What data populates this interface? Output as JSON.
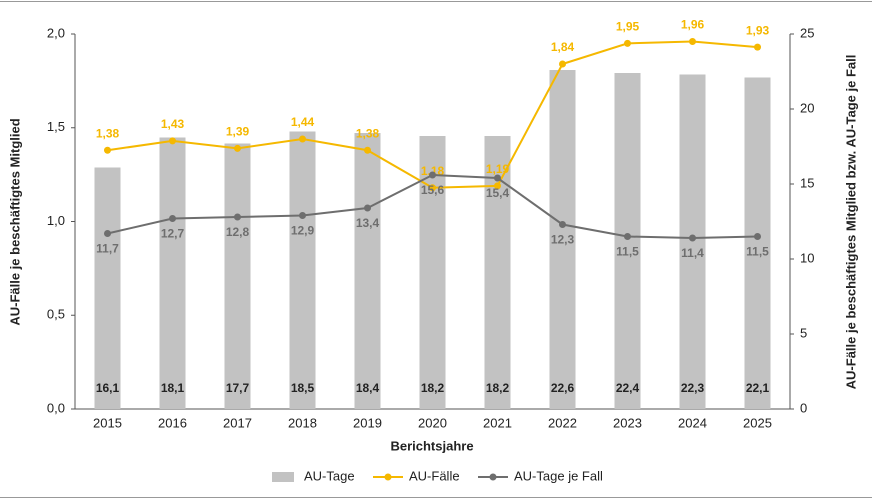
{
  "chart_data": {
    "type": "combo",
    "x_label": "Berichtsjahre",
    "y_label": "AU-Fälle je beschäftigtes Mitglied",
    "y2_label": "AU-Fälle je beschäftigtes Mitglied bzw. AU-Tage je Fall",
    "categories": [
      "2015",
      "2016",
      "2017",
      "2018",
      "2019",
      "2020",
      "2021",
      "2022",
      "2023",
      "2024",
      "2025"
    ],
    "ylim": [
      0,
      2
    ],
    "yticks": [
      {
        "value": 0,
        "label": "0,0"
      },
      {
        "value": 0.5,
        "label": "0,5"
      },
      {
        "value": 1,
        "label": "1,0"
      },
      {
        "value": 1.5,
        "label": "1,5"
      },
      {
        "value": 2,
        "label": "2,0"
      }
    ],
    "y2lim": [
      0,
      25
    ],
    "y2ticks": [
      0,
      5,
      10,
      15,
      20,
      25
    ],
    "series": [
      {
        "name": "AU-Tage",
        "type": "bar",
        "axis": "y2",
        "color": "#c2c2c2",
        "values": [
          16.1,
          18.1,
          17.7,
          18.5,
          18.4,
          18.2,
          18.2,
          22.6,
          22.4,
          22.3,
          22.1
        ],
        "value_labels": [
          "16,1",
          "18,1",
          "17,7",
          "18,5",
          "18,4",
          "18,2",
          "18,2",
          "22,6",
          "22,4",
          "22,3",
          "22,1"
        ]
      },
      {
        "name": "AU-Fälle",
        "type": "line",
        "axis": "y",
        "color": "#f5b800",
        "values": [
          1.38,
          1.43,
          1.39,
          1.44,
          1.38,
          1.18,
          1.19,
          1.84,
          1.95,
          1.96,
          1.93
        ],
        "value_labels": [
          "1,38",
          "1,43",
          "1,39",
          "1,44",
          "1,38",
          "1,18",
          "1,19",
          "1,84",
          "1,95",
          "1,96",
          "1,93"
        ]
      },
      {
        "name": "AU-Tage je Fall",
        "type": "line",
        "axis": "y2",
        "color": "#6e6e6e",
        "values": [
          11.7,
          12.7,
          12.8,
          12.9,
          13.4,
          15.6,
          15.4,
          12.3,
          11.5,
          11.4,
          11.5
        ],
        "value_labels": [
          "11,7",
          "12,7",
          "12,8",
          "12,9",
          "13,4",
          "15,6",
          "15,4",
          "12,3",
          "11,5",
          "11,4",
          "11,5"
        ]
      }
    ]
  }
}
